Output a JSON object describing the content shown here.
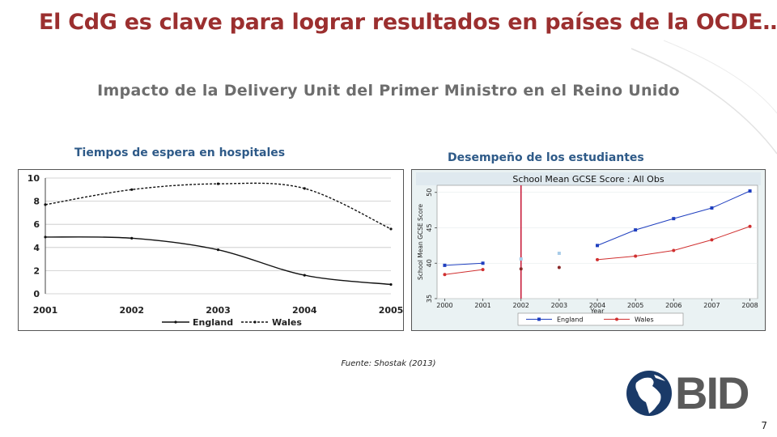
{
  "slide": {
    "title": "El CdG es clave para lograr resultados en países de la OCDE…",
    "subtitle": "Impacto de la Delivery Unit del Primer Ministro en el Reino Unido",
    "source": "Fuente: Shostak (2013)",
    "page_number": "7",
    "logo_text": "BID",
    "colors": {
      "title": "#9b2f2f",
      "chart_titles": "#2e5a88",
      "subtitle": "#6d6d6d"
    }
  },
  "chart_data": [
    {
      "type": "line",
      "panel_title": "Tiempos de espera en hospitales",
      "title": "",
      "xlabel": "",
      "ylabel": "",
      "x": [
        2001,
        2002,
        2003,
        2004,
        2005
      ],
      "x_tick_labels": [
        "2001",
        "2002",
        "2003",
        "2004",
        "2005"
      ],
      "y_tick_labels": [
        "0",
        "2",
        "4",
        "6",
        "8",
        "10"
      ],
      "ylim": [
        0,
        10
      ],
      "grid": true,
      "legend_position": "bottom",
      "series": [
        {
          "name": "England",
          "style": "solid",
          "color": "#111111",
          "values": [
            4.9,
            4.8,
            3.8,
            1.6,
            0.8
          ]
        },
        {
          "name": "Wales",
          "style": "dotted",
          "color": "#111111",
          "values": [
            7.7,
            9.0,
            9.5,
            9.1,
            5.6
          ]
        }
      ]
    },
    {
      "type": "line",
      "panel_title": "Desempeño de los estudiantes",
      "title": "School Mean GCSE Score : All Obs",
      "xlabel": "Year",
      "ylabel": "School Mean GCSE Score",
      "x": [
        2000,
        2001,
        2002,
        2003,
        2004,
        2005,
        2006,
        2007,
        2008
      ],
      "x_tick_labels": [
        "2000",
        "2001",
        "2002",
        "2003",
        "2004",
        "2005",
        "2006",
        "2007",
        "2008"
      ],
      "y_tick_labels": [
        "35",
        "40",
        "45",
        "50"
      ],
      "ylim": [
        35,
        51
      ],
      "xlim": [
        1999.8,
        2008.2
      ],
      "vline_x": 2002,
      "vline_color": "#c81e3c",
      "grid": true,
      "legend_position": "bottom",
      "series": [
        {
          "name": "England",
          "color": "#1f3fbf",
          "values": [
            39.7,
            40.0,
            null,
            null,
            42.5,
            44.7,
            46.3,
            47.8,
            50.2
          ]
        },
        {
          "name": "Wales",
          "color": "#d03030",
          "values": [
            38.4,
            39.1,
            null,
            null,
            40.5,
            41.0,
            41.8,
            43.3,
            45.2
          ]
        }
      ],
      "isolated_points": [
        {
          "x": 2002,
          "y": 40.6,
          "color": "#a8cce8",
          "shape": "square"
        },
        {
          "x": 2003,
          "y": 41.4,
          "color": "#a8cce8",
          "shape": "square"
        },
        {
          "x": 2002,
          "y": 39.2,
          "color": "#8a2a2a",
          "shape": "circle"
        },
        {
          "x": 2003,
          "y": 39.4,
          "color": "#8a2a2a",
          "shape": "circle"
        }
      ]
    }
  ]
}
